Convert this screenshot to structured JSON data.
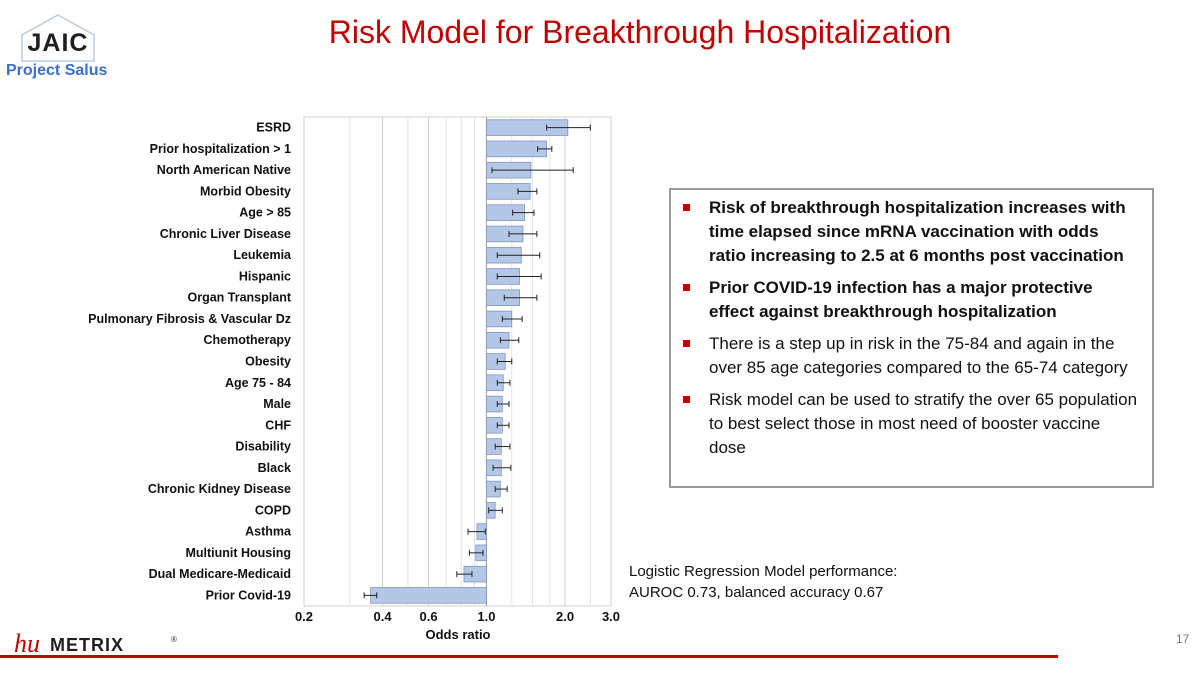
{
  "header": {
    "logo_text": "JAIC",
    "project_label": "Project Salus",
    "title": "Risk Model for Breakthrough Hospitalization"
  },
  "chart_data": {
    "type": "bar",
    "orientation": "horizontal",
    "x_scale": "log",
    "xlabel": "Odds ratio",
    "xlim": [
      0.2,
      3.0
    ],
    "x_ticks": [
      0.2,
      0.4,
      0.6,
      1.0,
      2.0,
      3.0
    ],
    "x_tick_labels": [
      "0.2",
      "0.4",
      "0.6",
      "1.0",
      "2.0",
      "3.0"
    ],
    "x_minor_gridlines": [
      0.3,
      0.5,
      0.7,
      0.8,
      0.9,
      1.25,
      1.5,
      1.75,
      2.5
    ],
    "baseline": 1.0,
    "grid": true,
    "bar_color": "#b4c7e7",
    "bar_edge_color": "#7f96c4",
    "categories": [
      "ESRD",
      "Prior hospitalization > 1",
      "North American Native",
      "Morbid Obesity",
      "Age > 85",
      "Chronic Liver Disease",
      "Leukemia",
      "Hispanic",
      "Organ Transplant",
      "Pulmonary Fibrosis & Vascular Dz",
      "Chemotherapy",
      "Obesity",
      "Age 75 - 84",
      "Male",
      "CHF",
      "Disability",
      "Black",
      "Chronic Kidney Disease",
      "COPD",
      "Asthma",
      "Multiunit Housing",
      "Dual Medicare-Medicaid",
      "Prior Covid-19"
    ],
    "values": [
      2.05,
      1.7,
      1.48,
      1.47,
      1.4,
      1.38,
      1.36,
      1.34,
      1.34,
      1.25,
      1.22,
      1.18,
      1.16,
      1.15,
      1.15,
      1.14,
      1.14,
      1.13,
      1.08,
      0.92,
      0.91,
      0.82,
      0.36
    ],
    "ci_lower": [
      1.7,
      1.57,
      1.05,
      1.32,
      1.26,
      1.22,
      1.1,
      1.1,
      1.17,
      1.15,
      1.13,
      1.1,
      1.1,
      1.1,
      1.1,
      1.08,
      1.06,
      1.08,
      1.02,
      0.85,
      0.86,
      0.77,
      0.34
    ],
    "ci_upper": [
      2.5,
      1.78,
      2.15,
      1.56,
      1.52,
      1.56,
      1.6,
      1.62,
      1.56,
      1.37,
      1.33,
      1.25,
      1.23,
      1.22,
      1.22,
      1.23,
      1.24,
      1.2,
      1.15,
      0.99,
      0.97,
      0.88,
      0.38
    ]
  },
  "bullets": [
    {
      "text": "Risk of breakthrough hospitalization increases with time elapsed since mRNA vaccination with odds ratio increasing to 2.5 at 6 months post vaccination",
      "bold": true
    },
    {
      "text": "Prior COVID-19 infection has a major protective effect against breakthrough hospitalization",
      "bold": true
    },
    {
      "text": "There is a step up in risk in the 75-84 and again in the over 85 age categories compared to the 65-74 category",
      "bold": false
    },
    {
      "text": "Risk model can be used to stratify the over 65 population to best select those in most need of booster vaccine dose",
      "bold": false
    }
  ],
  "performance_note": {
    "line1": "Logistic Regression Model performance:",
    "line2": "AUROC 0.73, balanced accuracy 0.67"
  },
  "footer": {
    "logo_text_hu": "hu",
    "logo_text_metrix": "METRIX",
    "logo_reg": "®",
    "page_number": "17"
  },
  "colors": {
    "title": "#c00000",
    "accent_blue": "#3b6fc4",
    "bullet_marker": "#c00000",
    "footer_rule": "#c00000"
  }
}
